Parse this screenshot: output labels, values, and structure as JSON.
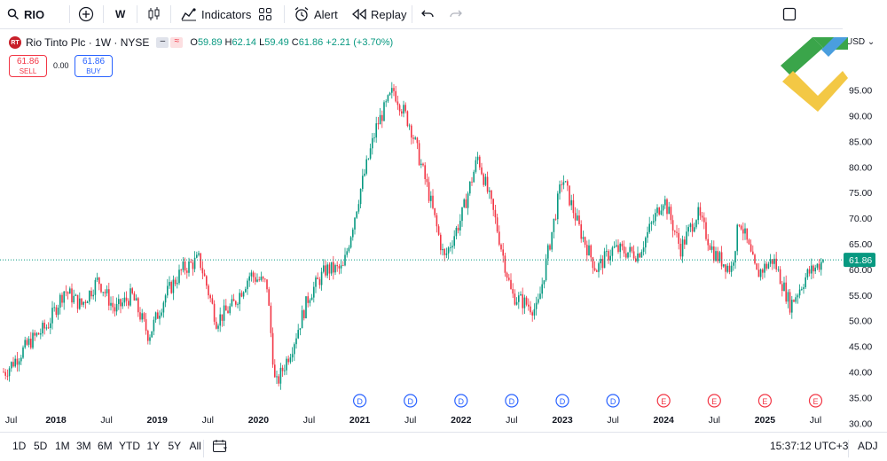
{
  "toolbar": {
    "symbol": "RIO",
    "interval": "W",
    "indicators_label": "Indicators",
    "alert_label": "Alert",
    "replay_label": "Replay"
  },
  "legend": {
    "title": "Rio Tinto Plc · 1W · NYSE",
    "open_label": "O",
    "open": "59.89",
    "high_label": "H",
    "high": "62.14",
    "low_label": "L",
    "low": "59.49",
    "close_label": "C",
    "close": "61.86",
    "change": "+2.21 (+3.70%)"
  },
  "trade": {
    "sell_price": "61.86",
    "sell_label": "SELL",
    "spread": "0.00",
    "buy_price": "61.86",
    "buy_label": "BUY"
  },
  "currency": "USD",
  "current_price_label": "61.86",
  "events": [
    {
      "kind": "D",
      "x": "2021"
    },
    {
      "kind": "D",
      "x": "Jul 2021"
    },
    {
      "kind": "D",
      "x": "2022"
    },
    {
      "kind": "D",
      "x": "Jul 2022"
    },
    {
      "kind": "D",
      "x": "2023"
    },
    {
      "kind": "D",
      "x": "Jul 2023"
    },
    {
      "kind": "E",
      "x": "2024"
    },
    {
      "kind": "E",
      "x": "Jul 2024"
    },
    {
      "kind": "E",
      "x": "2025"
    },
    {
      "kind": "E",
      "x": "Jul 2025"
    }
  ],
  "ranges": [
    "1D",
    "5D",
    "1M",
    "3M",
    "6M",
    "YTD",
    "1Y",
    "5Y",
    "All"
  ],
  "clock": "15:37:12 UTC+3",
  "adj_label": "ADJ",
  "colors": {
    "up": "#089981",
    "down": "#f23645",
    "price_line": "#089981",
    "accent": "#2962ff"
  },
  "chart_data": {
    "type": "candlestick",
    "title": "Rio Tinto Plc · 1W · NYSE",
    "ylim": [
      27,
      98
    ],
    "y_ticks": [
      "30.00",
      "35.00",
      "40.00",
      "45.00",
      "50.00",
      "55.00",
      "60.00",
      "65.00",
      "70.00",
      "75.00",
      "80.00",
      "85.00",
      "90.00",
      "95.00"
    ],
    "x_ticks": [
      "Jul",
      "2018",
      "Jul",
      "2019",
      "Jul",
      "2020",
      "Jul",
      "2021",
      "Jul",
      "2022",
      "Jul",
      "2023",
      "Jul",
      "2024",
      "Jul",
      "2025",
      "Jul"
    ],
    "price_path": [
      [
        "Jul 2017",
        40
      ],
      [
        "Oct 2017",
        46
      ],
      [
        "Dec 2017",
        49
      ],
      [
        "Feb 2018",
        56
      ],
      [
        "Apr 2018",
        53
      ],
      [
        "Jun 2018",
        58
      ],
      [
        "Aug 2018",
        52
      ],
      [
        "Oct 2018",
        55
      ],
      [
        "Dec 2018",
        47
      ],
      [
        "Feb 2019",
        55
      ],
      [
        "Apr 2019",
        60
      ],
      [
        "Jun 2019",
        62
      ],
      [
        "Aug 2019",
        50
      ],
      [
        "Oct 2019",
        53
      ],
      [
        "Dec 2019",
        59
      ],
      [
        "Feb 2020",
        57
      ],
      [
        "Mar 2020",
        37
      ],
      [
        "May 2020",
        45
      ],
      [
        "Jul 2020",
        55
      ],
      [
        "Sep 2020",
        60
      ],
      [
        "Nov 2020",
        60
      ],
      [
        "Jan 2021",
        75
      ],
      [
        "Mar 2021",
        88
      ],
      [
        "May 2021",
        95
      ],
      [
        "Jul 2021",
        88
      ],
      [
        "Sep 2021",
        76
      ],
      [
        "Nov 2021",
        62
      ],
      [
        "Jan 2022",
        70
      ],
      [
        "Mar 2022",
        82
      ],
      [
        "May 2022",
        70
      ],
      [
        "Jul 2022",
        55
      ],
      [
        "Oct 2022",
        52
      ],
      [
        "Jan 2023",
        78
      ],
      [
        "Mar 2023",
        68
      ],
      [
        "May 2023",
        60
      ],
      [
        "Jul 2023",
        64
      ],
      [
        "Oct 2023",
        63
      ],
      [
        "Jan 2024",
        74
      ],
      [
        "Mar 2024",
        64
      ],
      [
        "May 2024",
        71
      ],
      [
        "Jul 2024",
        63
      ],
      [
        "Sep 2024",
        60
      ],
      [
        "Oct 2024",
        70
      ],
      [
        "Dec 2024",
        59
      ],
      [
        "Feb 2025",
        62
      ],
      [
        "Apr 2025",
        53
      ],
      [
        "Jun 2025",
        59
      ],
      [
        "Aug 2025",
        61.86
      ]
    ],
    "last_close": 61.86
  }
}
